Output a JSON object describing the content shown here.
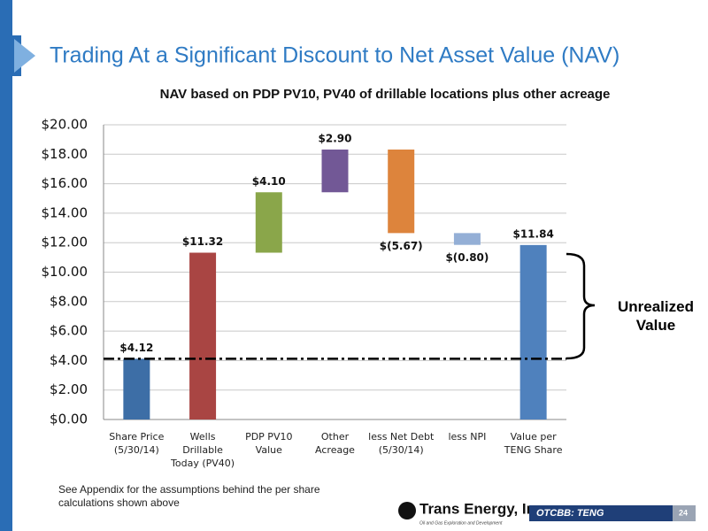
{
  "slide_title": "Trading At a Significant Discount to Net Asset Value (NAV)",
  "chart_data": {
    "type": "waterfall",
    "title": "NAV based on PDP PV10, PV40 of drillable locations plus other acreage",
    "categories": [
      "Share Price\n(5/30/14)",
      "Wells\nDrillable\nToday (PV40)",
      "PDP PV10\nValue",
      "Other\nAcreage",
      "less Net Debt\n(5/30/14)",
      "less NPI",
      "Value per\nTENG Share"
    ],
    "values": [
      4.12,
      11.32,
      4.1,
      2.9,
      -5.67,
      -0.8,
      11.84
    ],
    "value_labels": [
      "$4.12",
      "$11.32",
      "$4.10",
      "$2.90",
      "$(5.67)",
      "$(0.80)",
      "$11.84"
    ],
    "measure": [
      "absolute",
      "absolute",
      "relative",
      "relative",
      "relative",
      "relative",
      "total"
    ],
    "colors": [
      "#3d6ea6",
      "#a94543",
      "#8aa64a",
      "#725896",
      "#dd843c",
      "#94afd6",
      "#4f81bd"
    ],
    "ylim": [
      0,
      20
    ],
    "yticks": [
      {
        "value": 0,
        "label": "$0.00"
      },
      {
        "value": 2,
        "label": "$2.00"
      },
      {
        "value": 4,
        "label": "$4.00"
      },
      {
        "value": 6,
        "label": "$6.00"
      },
      {
        "value": 8,
        "label": "$8.00"
      },
      {
        "value": 10,
        "label": "$10.00"
      },
      {
        "value": 12,
        "label": "$12.00"
      },
      {
        "value": 14,
        "label": "$14.00"
      },
      {
        "value": 16,
        "label": "$16.00"
      },
      {
        "value": 18,
        "label": "$18.00"
      },
      {
        "value": 20,
        "label": "$20.00"
      }
    ],
    "grid": true,
    "annotation": "Unrealized\nValue"
  },
  "footnote": "See Appendix for the assumptions behind the per share\ncalculations shown above",
  "logo": {
    "name": "Trans Energy, Inc.",
    "tagline": "Oil and Gas Exploration and Development"
  },
  "ticker": "OTCBB: TENG",
  "page_number": "24"
}
